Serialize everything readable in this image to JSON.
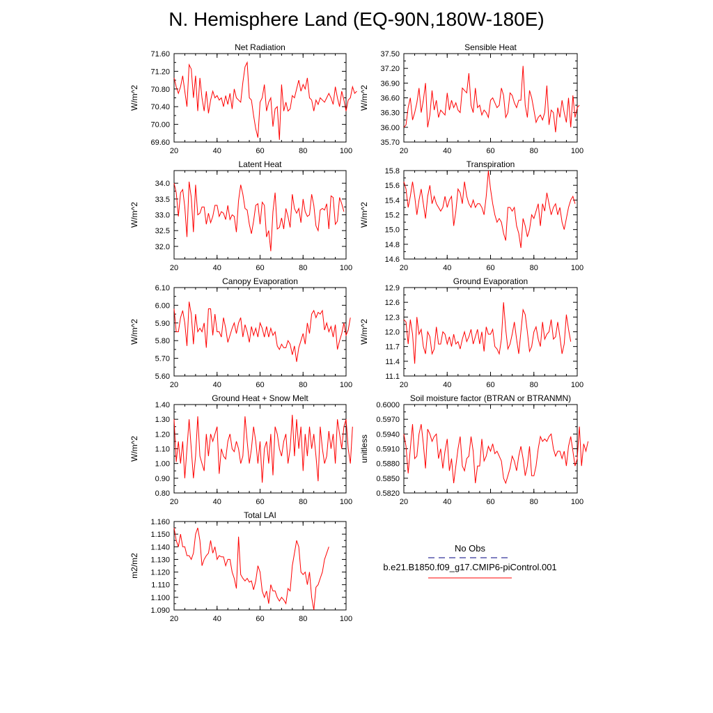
{
  "title": "N. Hemisphere Land (EQ-90N,180W-180E)",
  "colors": {
    "model": "#ff0000",
    "obs": "#000080",
    "axis": "#000000"
  },
  "legend": {
    "obs_label": "No Obs",
    "model_label": "b.e21.B1850.f09_g17.CMIP6-piControl.001"
  },
  "chart_data": [
    {
      "type": "line",
      "title": "Net Radiation",
      "ylabel": "W/m^2",
      "xlim": [
        20,
        100
      ],
      "ylim": [
        69.6,
        71.6
      ],
      "xticks": [
        20,
        40,
        60,
        80,
        100
      ],
      "yticks": [
        69.6,
        70.0,
        70.4,
        70.8,
        71.2,
        71.6
      ],
      "ytick_decimals": 2,
      "series": [
        {
          "x_start": 20,
          "values": [
            71.05,
            70.85,
            70.7,
            70.85,
            71.1,
            70.75,
            70.4,
            71.35,
            71.25,
            70.6,
            71.1,
            70.3,
            71.05,
            70.6,
            70.3,
            70.75,
            70.25,
            70.55,
            70.75,
            70.6,
            70.65,
            70.55,
            70.6,
            70.4,
            70.65,
            70.45,
            70.7,
            70.35,
            70.8,
            70.6,
            70.55,
            70.5,
            70.95,
            71.3,
            71.4,
            70.6,
            70.55,
            70.2,
            69.9,
            69.7,
            70.5,
            70.6,
            70.9,
            70.3,
            70.5,
            70.6,
            69.95,
            70.35,
            70.4,
            69.65,
            70.9,
            70.3,
            70.5,
            70.3,
            70.35,
            70.65,
            70.6,
            70.8,
            71.0,
            70.75,
            70.9,
            70.8,
            71.05,
            70.6,
            70.55,
            70.3,
            70.55,
            70.45,
            70.6,
            70.55,
            70.5,
            70.6,
            70.7,
            70.6,
            70.45,
            70.85,
            70.6,
            70.4,
            70.75,
            70.55,
            70.3,
            70.55,
            70.6,
            70.85,
            70.7,
            70.75
          ]
        }
      ]
    },
    {
      "type": "line",
      "title": "Sensible Heat",
      "ylabel": "W/m^2",
      "xlim": [
        20,
        100
      ],
      "ylim": [
        35.7,
        37.5
      ],
      "xticks": [
        20,
        40,
        60,
        80,
        100
      ],
      "yticks": [
        35.7,
        36.0,
        36.3,
        36.6,
        36.9,
        37.2,
        37.5
      ],
      "ytick_decimals": 2,
      "series": [
        {
          "x_start": 20,
          "values": [
            36.0,
            36.05,
            36.4,
            36.6,
            36.15,
            36.3,
            36.5,
            36.8,
            36.3,
            36.55,
            36.9,
            36.0,
            36.25,
            36.75,
            36.35,
            36.55,
            36.2,
            36.35,
            36.3,
            36.25,
            36.7,
            36.35,
            36.55,
            36.4,
            36.5,
            36.35,
            36.3,
            36.8,
            36.75,
            36.7,
            37.1,
            36.45,
            36.3,
            36.8,
            36.4,
            36.45,
            36.25,
            36.35,
            36.3,
            36.2,
            36.55,
            36.6,
            36.5,
            36.4,
            36.45,
            36.8,
            36.65,
            36.2,
            36.3,
            36.7,
            36.65,
            36.5,
            36.4,
            36.55,
            36.55,
            37.25,
            36.45,
            36.2,
            36.75,
            36.6,
            36.35,
            36.1,
            36.2,
            36.25,
            36.15,
            36.3,
            36.85,
            36.05,
            36.35,
            36.3,
            35.9,
            36.4,
            36.2,
            36.55,
            36.3,
            36.1,
            36.6,
            36.0,
            36.65,
            36.2,
            36.4,
            36.45
          ]
        }
      ]
    },
    {
      "type": "line",
      "title": "Latent Heat",
      "ylabel": "W/m^2",
      "xlim": [
        20,
        100
      ],
      "ylim": [
        31.6,
        34.4
      ],
      "xticks": [
        20,
        40,
        60,
        80,
        100
      ],
      "yticks": [
        32.0,
        32.5,
        33.0,
        33.5,
        34.0
      ],
      "ytick_decimals": 1,
      "series": [
        {
          "x_start": 20,
          "values": [
            34.0,
            33.7,
            32.95,
            33.7,
            33.8,
            33.25,
            32.3,
            34.05,
            33.55,
            32.45,
            33.95,
            33.0,
            33.05,
            33.25,
            33.25,
            32.7,
            33.05,
            32.75,
            32.95,
            33.3,
            33.3,
            32.95,
            33.1,
            33.05,
            32.85,
            33.3,
            32.85,
            33.0,
            32.95,
            32.45,
            33.45,
            33.95,
            33.65,
            33.2,
            33.15,
            32.7,
            32.4,
            32.8,
            33.3,
            33.35,
            32.7,
            33.4,
            33.3,
            32.3,
            32.5,
            31.85,
            33.1,
            33.7,
            32.55,
            32.6,
            32.9,
            32.55,
            33.2,
            32.95,
            32.6,
            33.65,
            33.2,
            33.05,
            33.2,
            32.75,
            33.5,
            33.1,
            32.95,
            33.0,
            33.65,
            33.3,
            32.65,
            32.5,
            33.15,
            33.2,
            33.15,
            33.35,
            32.55,
            33.6,
            33.55,
            32.7,
            32.8,
            33.55,
            33.35,
            33.1
          ]
        }
      ]
    },
    {
      "type": "line",
      "title": "Transpiration",
      "ylabel": "W/m^2",
      "xlim": [
        20,
        100
      ],
      "ylim": [
        14.6,
        15.8
      ],
      "xticks": [
        20,
        40,
        60,
        80,
        100
      ],
      "yticks": [
        14.6,
        14.8,
        15.0,
        15.2,
        15.4,
        15.6,
        15.8
      ],
      "ytick_decimals": 1,
      "series": [
        {
          "x_start": 20,
          "values": [
            15.65,
            15.55,
            15.3,
            15.45,
            15.65,
            15.45,
            15.2,
            15.4,
            15.55,
            15.35,
            15.15,
            15.45,
            15.6,
            15.35,
            15.45,
            15.35,
            15.3,
            15.25,
            15.3,
            15.45,
            15.3,
            15.4,
            15.45,
            15.05,
            15.25,
            15.55,
            15.5,
            15.35,
            15.65,
            15.45,
            15.35,
            15.3,
            15.4,
            15.3,
            15.35,
            15.35,
            15.3,
            15.2,
            15.45,
            15.8,
            15.55,
            15.35,
            15.2,
            15.1,
            15.15,
            15.1,
            14.95,
            14.85,
            15.3,
            15.3,
            15.25,
            15.3,
            15.05,
            14.95,
            14.75,
            15.15,
            15.05,
            14.9,
            15.0,
            15.2,
            15.15,
            15.25,
            15.35,
            15.05,
            15.35,
            15.25,
            15.5,
            15.35,
            15.2,
            15.3,
            15.35,
            15.2,
            15.3,
            15.1,
            15.0,
            15.15,
            15.3,
            15.4,
            15.45,
            15.35
          ]
        }
      ]
    },
    {
      "type": "line",
      "title": "Canopy Evaporation",
      "ylabel": "W/m^2",
      "xlim": [
        20,
        100
      ],
      "ylim": [
        5.6,
        6.1
      ],
      "xticks": [
        20,
        40,
        60,
        80,
        100
      ],
      "yticks": [
        5.6,
        5.7,
        5.8,
        5.9,
        6.0,
        6.1
      ],
      "ytick_decimals": 2,
      "series": [
        {
          "x_start": 20,
          "values": [
            5.98,
            5.85,
            5.85,
            5.93,
            5.97,
            5.9,
            5.77,
            6.02,
            5.95,
            5.78,
            5.95,
            5.85,
            5.87,
            5.85,
            5.9,
            5.76,
            5.98,
            5.98,
            5.83,
            5.95,
            5.85,
            5.85,
            5.82,
            5.93,
            5.87,
            5.79,
            5.83,
            5.87,
            5.9,
            5.84,
            5.9,
            5.93,
            5.82,
            5.89,
            5.85,
            5.79,
            5.88,
            5.83,
            5.87,
            5.82,
            5.9,
            5.87,
            5.82,
            5.88,
            5.82,
            5.87,
            5.83,
            5.85,
            5.77,
            5.75,
            5.78,
            5.76,
            5.76,
            5.8,
            5.78,
            5.72,
            5.77,
            5.68,
            5.76,
            5.8,
            5.84,
            5.78,
            5.9,
            5.84,
            5.95,
            5.97,
            5.93,
            5.96,
            5.95,
            5.97,
            5.86,
            5.9,
            5.85,
            5.88,
            5.82,
            5.89,
            5.75,
            5.8,
            5.84,
            5.9,
            5.83,
            5.86,
            5.93
          ]
        }
      ]
    },
    {
      "type": "line",
      "title": "Ground Evaporation",
      "ylabel": "W/m^2",
      "xlim": [
        20,
        100
      ],
      "ylim": [
        11.1,
        12.9
      ],
      "xticks": [
        20,
        40,
        60,
        80,
        100
      ],
      "yticks": [
        11.1,
        11.4,
        11.7,
        12.0,
        12.3,
        12.6,
        12.9
      ],
      "ytick_decimals": 1,
      "series": [
        {
          "x_start": 20,
          "values": [
            12.25,
            12.2,
            11.75,
            12.25,
            11.95,
            11.35,
            12.3,
            11.95,
            12.05,
            11.7,
            11.55,
            12.0,
            11.9,
            11.55,
            11.65,
            12.1,
            11.75,
            11.75,
            12.0,
            11.95,
            11.75,
            11.9,
            11.7,
            11.95,
            11.75,
            11.8,
            11.65,
            11.85,
            12.0,
            11.8,
            11.9,
            12.05,
            11.75,
            11.9,
            12.05,
            11.75,
            12.0,
            11.6,
            12.1,
            11.95,
            11.95,
            12.05,
            11.7,
            11.65,
            11.55,
            11.85,
            12.6,
            12.05,
            11.65,
            11.75,
            11.95,
            12.2,
            11.85,
            11.55,
            12.0,
            12.45,
            12.35,
            12.0,
            11.6,
            11.7,
            12.0,
            12.1,
            11.85,
            11.7,
            12.2,
            11.85,
            11.95,
            12.0,
            12.25,
            11.85,
            11.9,
            12.2,
            11.9,
            11.55,
            11.75,
            12.35,
            12.05,
            11.8
          ]
        }
      ]
    },
    {
      "type": "line",
      "title": "Ground Heat + Snow Melt",
      "ylabel": "W/m^2",
      "xlim": [
        20,
        100
      ],
      "ylim": [
        0.8,
        1.4
      ],
      "xticks": [
        20,
        40,
        60,
        80,
        100
      ],
      "yticks": [
        0.8,
        0.9,
        1.0,
        1.1,
        1.2,
        1.3,
        1.4
      ],
      "ytick_decimals": 2,
      "series": [
        {
          "x_start": 20,
          "values": [
            1.3,
            1.01,
            1.15,
            1.0,
            1.15,
            0.9,
            1.1,
            1.3,
            1.1,
            0.9,
            1.05,
            1.32,
            1.05,
            1.0,
            0.95,
            1.2,
            1.05,
            1.2,
            1.15,
            1.2,
            1.25,
            0.93,
            1.1,
            1.05,
            1.03,
            1.15,
            1.2,
            1.1,
            1.08,
            1.15,
            1.1,
            1.0,
            1.05,
            1.32,
            1.15,
            1.0,
            1.1,
            1.25,
            1.15,
            1.0,
            1.15,
            0.87,
            1.1,
            1.15,
            1.0,
            1.2,
            0.92,
            1.25,
            1.2,
            1.1,
            1.05,
            1.15,
            1.2,
            1.0,
            1.1,
            1.33,
            1.05,
            1.3,
            1.1,
            1.25,
            0.95,
            1.2,
            1.05,
            1.25,
            1.1,
            1.2,
            1.05,
            0.88,
            1.25,
            1.1,
            1.0,
            1.05,
            1.22,
            1.1,
            1.2,
            1.0,
            1.3,
            1.2,
            1.1,
            1.25,
            1.3,
            1.1,
            1.0,
            1.25
          ]
        }
      ]
    },
    {
      "type": "line",
      "title": "Soil moisture factor (BTRAN or BTRANMN)",
      "ylabel": "unitless",
      "xlim": [
        20,
        100
      ],
      "ylim": [
        0.582,
        0.6
      ],
      "xticks": [
        20,
        40,
        60,
        80,
        100
      ],
      "yticks": [
        0.582,
        0.585,
        0.588,
        0.591,
        0.594,
        0.597,
        0.6
      ],
      "ytick_decimals": 4,
      "series": [
        {
          "x_start": 20,
          "values": [
            0.594,
            0.5915,
            0.586,
            0.591,
            0.596,
            0.589,
            0.5895,
            0.594,
            0.596,
            0.592,
            0.587,
            0.595,
            0.594,
            0.5925,
            0.5935,
            0.594,
            0.589,
            0.591,
            0.587,
            0.5905,
            0.593,
            0.5865,
            0.589,
            0.584,
            0.5875,
            0.591,
            0.5935,
            0.5875,
            0.5865,
            0.589,
            0.5895,
            0.5935,
            0.5905,
            0.584,
            0.5875,
            0.5875,
            0.593,
            0.5885,
            0.5895,
            0.5915,
            0.5905,
            0.592,
            0.59,
            0.5905,
            0.5895,
            0.5885,
            0.585,
            0.584,
            0.5855,
            0.587,
            0.5895,
            0.5885,
            0.5865,
            0.5895,
            0.5915,
            0.589,
            0.5855,
            0.5875,
            0.5915,
            0.5855,
            0.5855,
            0.5875,
            0.591,
            0.5935,
            0.5925,
            0.593,
            0.5925,
            0.5935,
            0.594,
            0.591,
            0.5895,
            0.5905,
            0.5905,
            0.589,
            0.5905,
            0.5875,
            0.5915,
            0.5935,
            0.5905,
            0.5875,
            0.589,
            0.5955,
            0.5875,
            0.592,
            0.5905,
            0.5925
          ]
        }
      ]
    },
    {
      "type": "line",
      "title": "Total LAI",
      "ylabel": "m2/m2",
      "xlim": [
        20,
        100
      ],
      "ylim": [
        1.09,
        1.16
      ],
      "xticks": [
        20,
        40,
        60,
        80,
        100
      ],
      "yticks": [
        1.09,
        1.1,
        1.11,
        1.12,
        1.13,
        1.14,
        1.15,
        1.16
      ],
      "ytick_decimals": 3,
      "series": [
        {
          "x_start": 20,
          "values": [
            1.155,
            1.145,
            1.14,
            1.15,
            1.14,
            1.14,
            1.133,
            1.133,
            1.13,
            1.135,
            1.15,
            1.155,
            1.145,
            1.125,
            1.13,
            1.133,
            1.135,
            1.145,
            1.135,
            1.14,
            1.13,
            1.133,
            1.132,
            1.132,
            1.125,
            1.13,
            1.13,
            1.12,
            1.115,
            1.107,
            1.148,
            1.118,
            1.115,
            1.113,
            1.115,
            1.112,
            1.113,
            1.106,
            1.113,
            1.125,
            1.12,
            1.105,
            1.1,
            1.105,
            1.095,
            1.11,
            1.105,
            1.105,
            1.1,
            1.097,
            1.1,
            1.098,
            1.095,
            1.107,
            1.105,
            1.125,
            1.135,
            1.145,
            1.14,
            1.12,
            1.118,
            1.12,
            1.11,
            1.12,
            1.1,
            1.09,
            1.108,
            1.11,
            1.115,
            1.12,
            1.13,
            1.135,
            1.14
          ]
        }
      ]
    }
  ]
}
